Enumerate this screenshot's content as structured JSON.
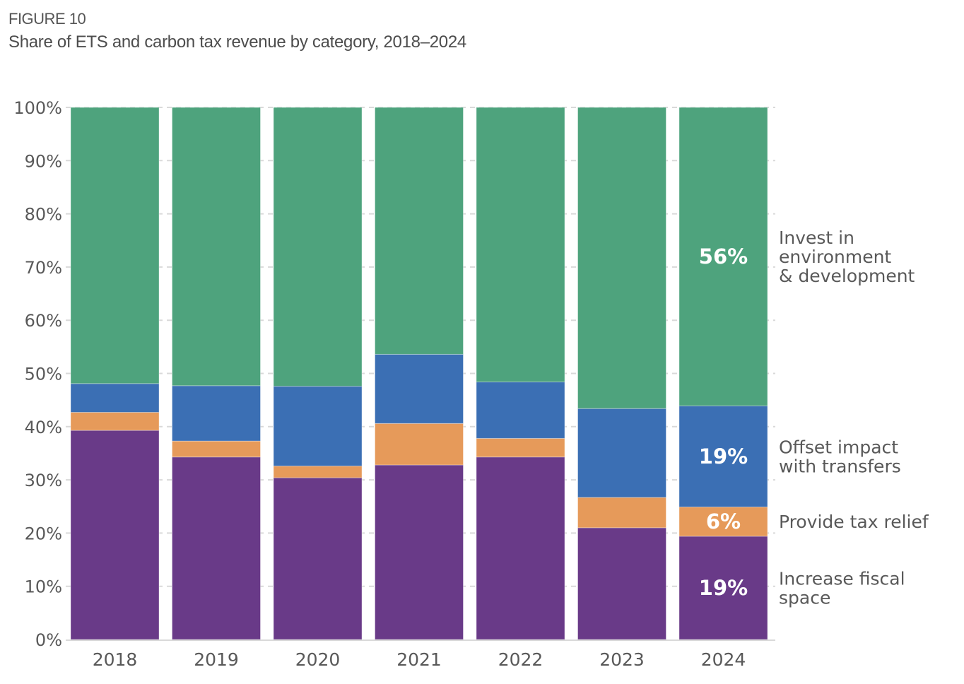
{
  "figure": {
    "label": "FIGURE 10",
    "title": "Share of ETS and carbon tax revenue by category, 2018–2024"
  },
  "chart_data": {
    "type": "bar",
    "stacked": true,
    "title": "Share of ETS and carbon tax revenue by category, 2018–2024",
    "xlabel": "",
    "ylabel": "",
    "ylim": [
      0,
      100
    ],
    "yticks": [
      0,
      10,
      20,
      30,
      40,
      50,
      60,
      70,
      80,
      90,
      100
    ],
    "ytick_labels": [
      "0%",
      "10%",
      "20%",
      "30%",
      "40%",
      "50%",
      "60%",
      "70%",
      "80%",
      "90%",
      "100%"
    ],
    "grid": "horizontal dashed",
    "legend_position": "right (direct labels)",
    "categories": [
      "2018",
      "2019",
      "2020",
      "2021",
      "2022",
      "2023",
      "2024"
    ],
    "series": [
      {
        "name": "Increase fiscal space",
        "legend_lines": [
          "Increase fiscal",
          "space"
        ],
        "color": "#693a88",
        "values": [
          39.3,
          34.3,
          30.4,
          32.8,
          34.3,
          21.0,
          19.4
        ]
      },
      {
        "name": "Provide tax relief",
        "legend_lines": [
          "Provide tax relief"
        ],
        "color": "#e69a5a",
        "values": [
          3.4,
          3.0,
          2.2,
          7.8,
          3.5,
          5.7,
          5.5
        ]
      },
      {
        "name": "Offset impact with transfers",
        "legend_lines": [
          "Offset impact",
          "with transfers"
        ],
        "color": "#3b6fb4",
        "values": [
          5.4,
          10.4,
          15.0,
          13.0,
          10.6,
          16.7,
          19.0
        ]
      },
      {
        "name": "Invest in environment & development",
        "legend_lines": [
          "Invest in",
          "environment",
          "& development"
        ],
        "color": "#4ea37d",
        "values": [
          51.9,
          52.3,
          52.4,
          46.4,
          51.6,
          56.6,
          56.1
        ]
      }
    ],
    "data_labels": [
      {
        "category": "2024",
        "series": "Invest in environment & development",
        "text": "56%"
      },
      {
        "category": "2024",
        "series": "Offset impact with transfers",
        "text": "19%"
      },
      {
        "category": "2024",
        "series": "Provide tax relief",
        "text": "6%"
      },
      {
        "category": "2024",
        "series": "Increase fiscal space",
        "text": "19%"
      }
    ]
  }
}
